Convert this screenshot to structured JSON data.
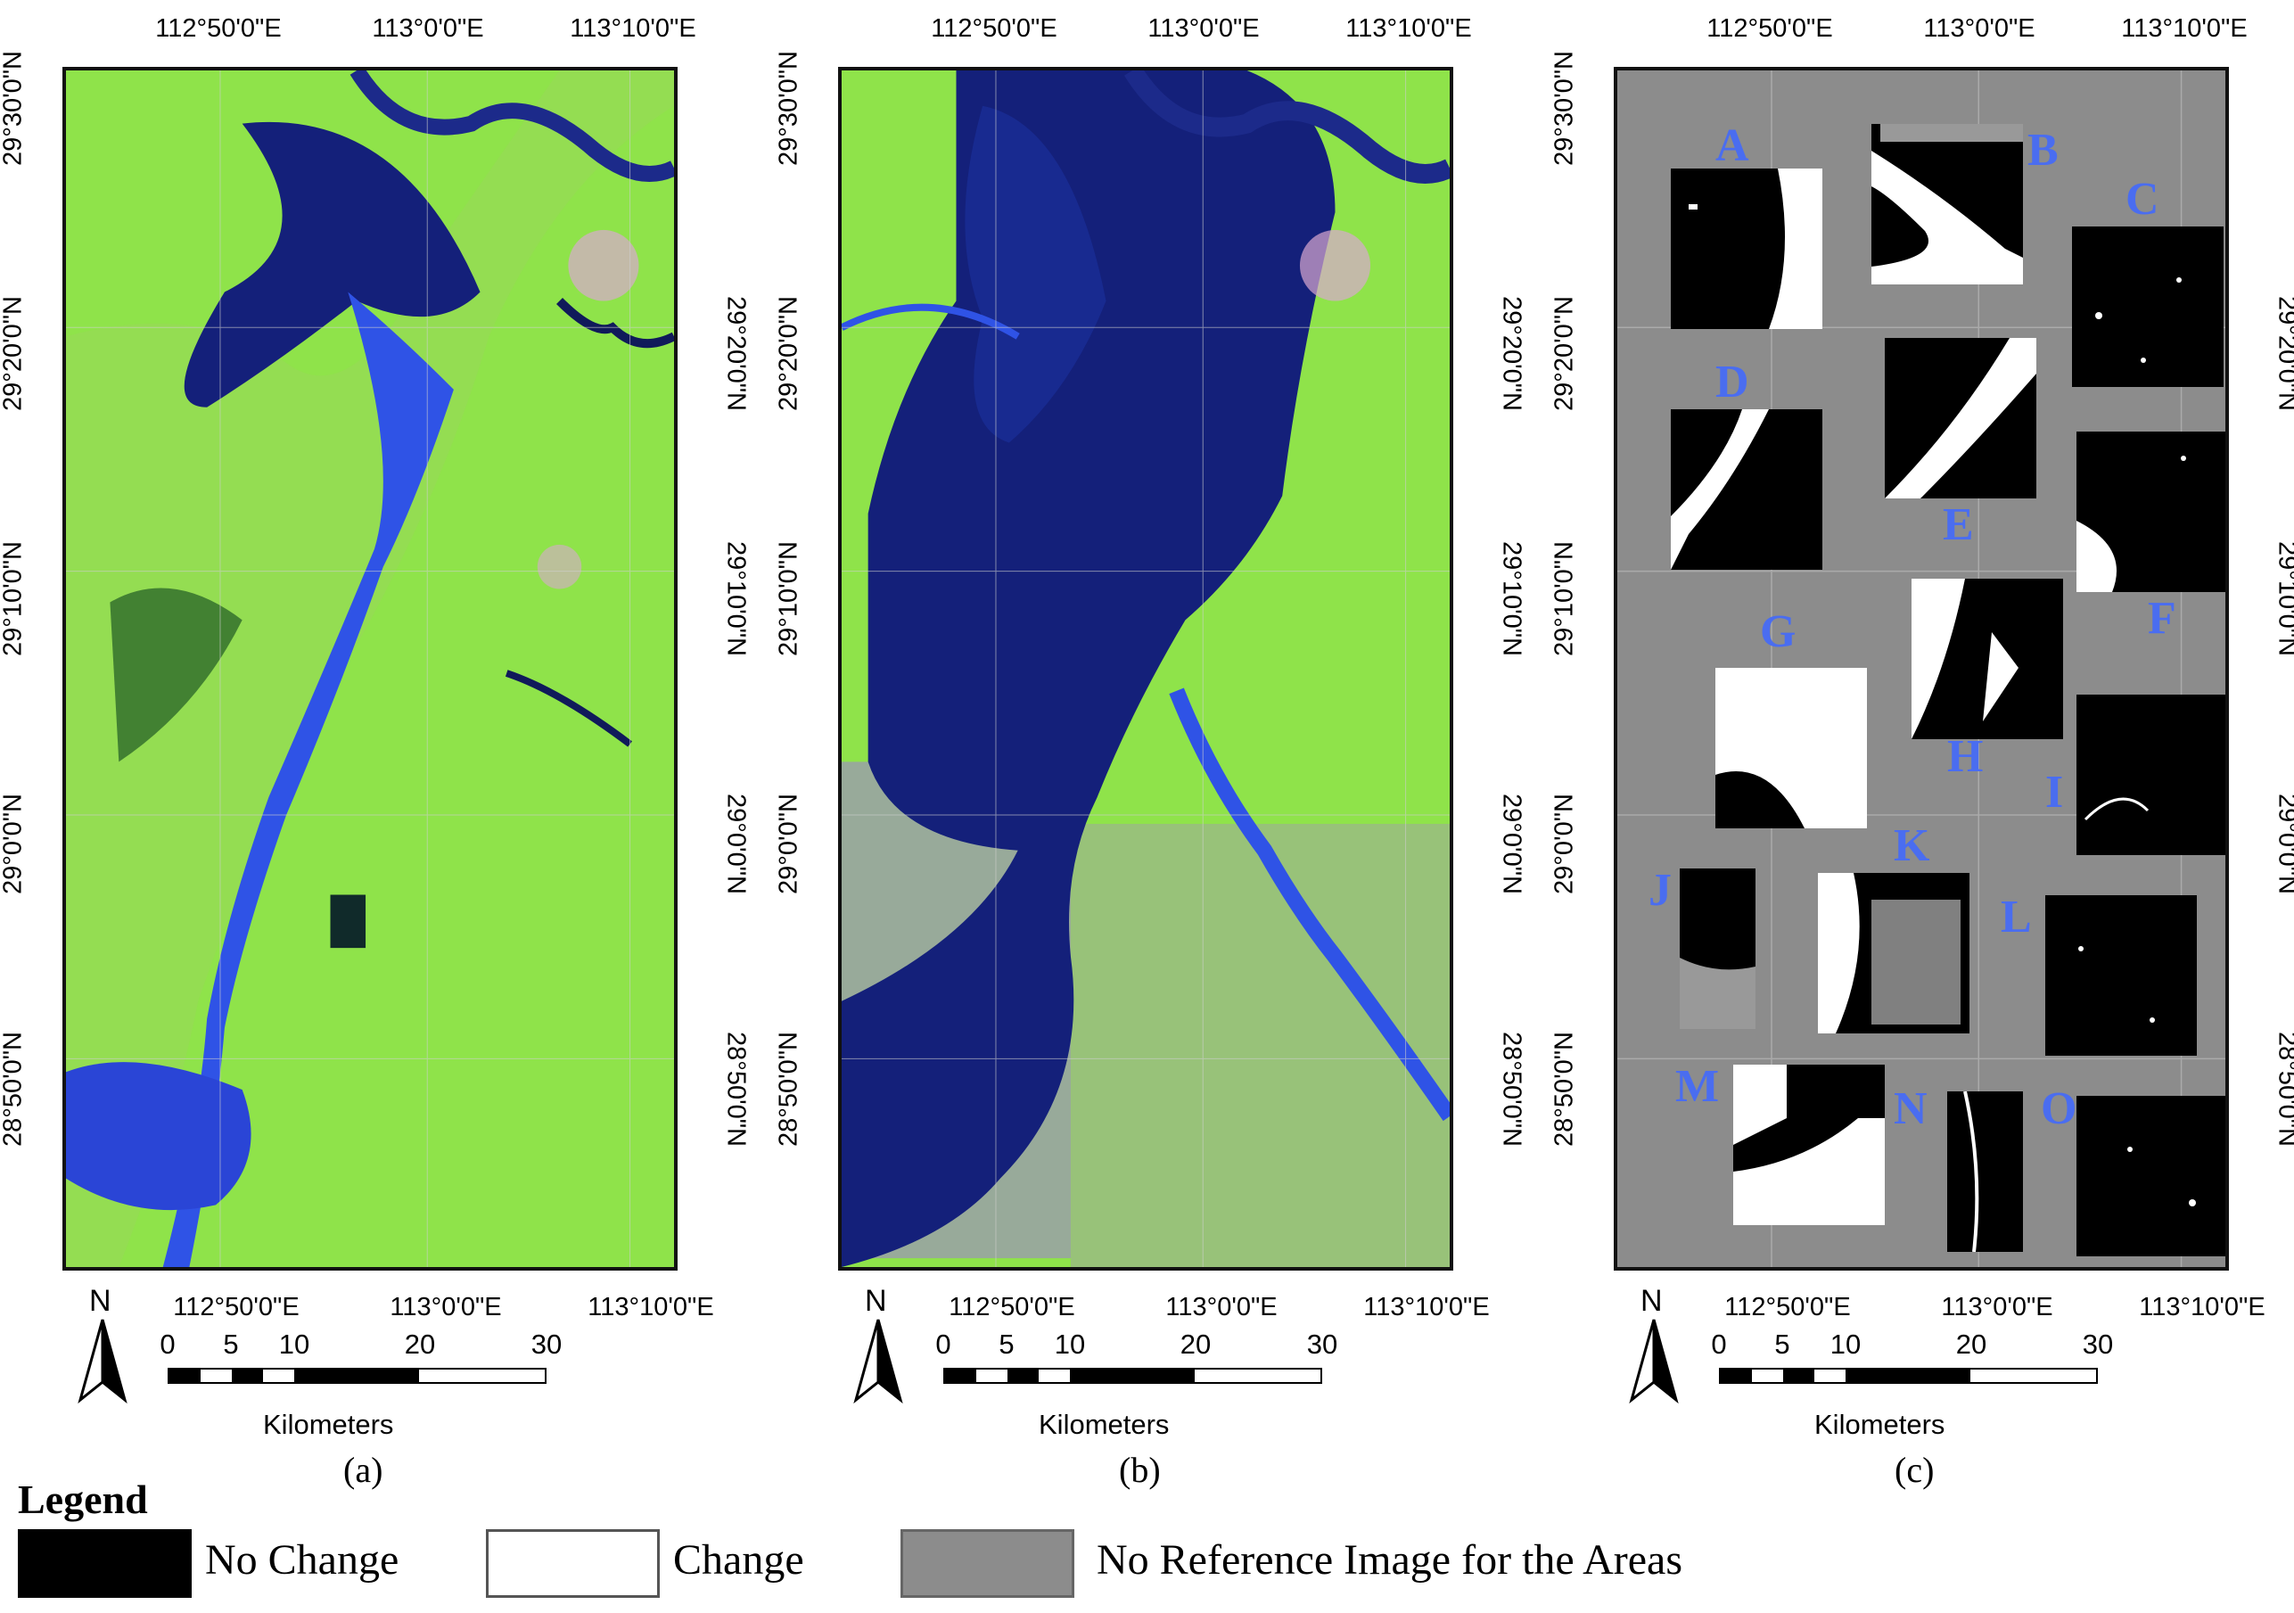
{
  "panels": [
    {
      "id": "a",
      "caption": "(a)",
      "lon_top": [
        "112°50'0\"E",
        "113°0'0\"E",
        "113°10'0\"E"
      ],
      "lon_bottom": [
        "112°50'0\"E",
        "113°0'0\"E",
        "113°10'0\"E"
      ],
      "lat_left": [
        "29°30'0\"N",
        "29°20'0\"N",
        "29°10'0\"N",
        "29°0'0\"N",
        "28°50'0\"N"
      ],
      "lat_right": [
        "29°20'0\"N",
        "29°10'0\"N",
        "29°0'0\"N",
        "28°50'0\"N"
      ]
    },
    {
      "id": "b",
      "caption": "(b)",
      "lon_top": [
        "112°50'0\"E",
        "113°0'0\"E",
        "113°10'0\"E"
      ],
      "lon_bottom": [
        "112°50'0\"E",
        "113°0'0\"E",
        "113°10'0\"E"
      ],
      "lat_left": [
        "29°30'0\"N",
        "29°20'0\"N",
        "29°10'0\"N",
        "29°0'0\"N",
        "28°50'0\"N"
      ],
      "lat_right": [
        "29°20'0\"N",
        "29°10'0\"N",
        "29°0'0\"N",
        "28°50'0\"N"
      ]
    },
    {
      "id": "c",
      "caption": "(c)",
      "lon_top": [
        "112°50'0\"E",
        "113°0'0\"E",
        "113°10'0\"E"
      ],
      "lon_bottom": [
        "112°50'0\"E",
        "113°0'0\"E",
        "113°10'0\"E"
      ],
      "lat_left": [
        "29°30'0\"N",
        "29°20'0\"N",
        "29°10'0\"N",
        "29°0'0\"N",
        "28°50'0\"N"
      ],
      "lat_right": [
        "29°20'0\"N",
        "29°10'0\"N",
        "29°0'0\"N",
        "28°50'0\"N"
      ]
    }
  ],
  "north_label": "N",
  "scale": {
    "ticks": [
      "0",
      "5",
      "10",
      "20",
      "30"
    ],
    "unit": "Kilometers"
  },
  "areas": [
    "A",
    "B",
    "C",
    "D",
    "E",
    "F",
    "G",
    "H",
    "I",
    "J",
    "K",
    "L",
    "M",
    "N",
    "O"
  ],
  "legend": {
    "title": "Legend",
    "items": [
      {
        "label": "No Change",
        "color": "#000000"
      },
      {
        "label": "Change",
        "color": "#ffffff"
      },
      {
        "label": "No Reference Image for the Areas",
        "color": "#8c8c8c"
      }
    ]
  },
  "colors": {
    "land": "#8fe34a",
    "water": "#1c2a8a",
    "river": "#2f53e6",
    "urban": "#c8a8c8",
    "no_reference": "#8c8c8c",
    "area_label": "#4a6df0"
  }
}
